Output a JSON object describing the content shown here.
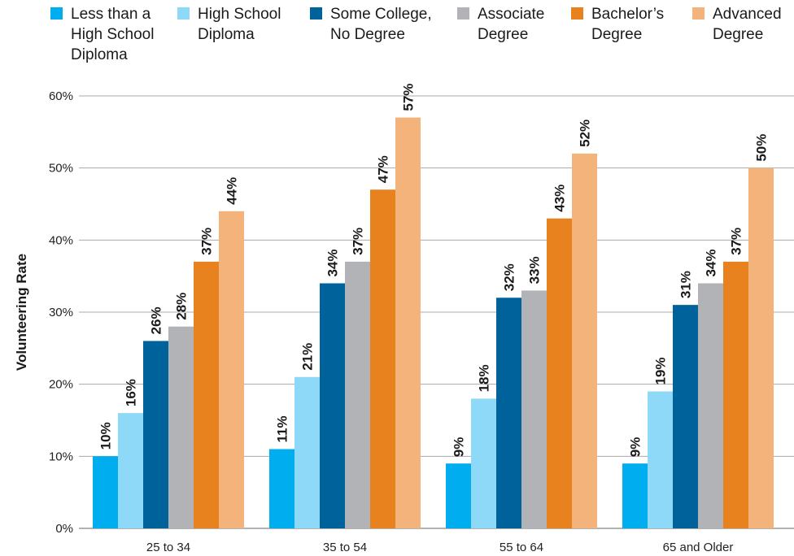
{
  "chart_data": {
    "type": "bar",
    "ylabel": "Volunteering Rate",
    "xlabel": "",
    "ylim": [
      0,
      60
    ],
    "yticks": [
      0,
      10,
      20,
      30,
      40,
      50,
      60
    ],
    "ytick_labels": [
      "0%",
      "10%",
      "20%",
      "30%",
      "40%",
      "50%",
      "60%"
    ],
    "value_suffix": "%",
    "grid": true,
    "legend_position": "top",
    "categories": [
      "25 to 34",
      "35 to 54",
      "55 to 64",
      "65 and Older"
    ],
    "series": [
      {
        "name": "Less than a\nHigh School\nDiploma",
        "color": "#00aeef",
        "values": [
          10,
          11,
          9,
          9
        ]
      },
      {
        "name": "High School\nDiploma",
        "color": "#8ed8f8",
        "values": [
          16,
          21,
          18,
          19
        ]
      },
      {
        "name": "Some College,\nNo Degree",
        "color": "#00629b",
        "values": [
          26,
          34,
          32,
          31
        ]
      },
      {
        "name": "Associate\nDegree",
        "color": "#b1b3b6",
        "values": [
          28,
          37,
          33,
          34
        ]
      },
      {
        "name": "Bachelor’s\nDegree",
        "color": "#e8821e",
        "values": [
          37,
          47,
          43,
          37
        ]
      },
      {
        "name": "Advanced\nDegree",
        "color": "#f3b37a",
        "values": [
          44,
          57,
          52,
          50
        ]
      }
    ]
  }
}
